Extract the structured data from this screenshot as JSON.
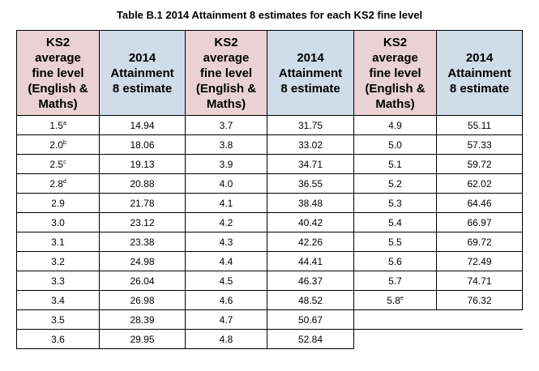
{
  "caption": "Table B.1 2014 Attainment 8 estimates for each KS2 fine level",
  "headers": {
    "ks2": [
      "KS2",
      "average",
      "fine level",
      "(English &",
      "Maths)"
    ],
    "att": [
      "2014",
      "Attainment",
      "8 estimate"
    ]
  },
  "rows": [
    [
      {
        "v": "1.5",
        "s": "a"
      },
      {
        "v": "14.94"
      },
      {
        "v": "3.7"
      },
      {
        "v": "31.75"
      },
      {
        "v": "4.9"
      },
      {
        "v": "55.11"
      }
    ],
    [
      {
        "v": "2.0",
        "s": "b"
      },
      {
        "v": "18.06"
      },
      {
        "v": "3.8"
      },
      {
        "v": "33.02"
      },
      {
        "v": "5.0"
      },
      {
        "v": "57.33"
      }
    ],
    [
      {
        "v": "2.5",
        "s": "c"
      },
      {
        "v": "19.13"
      },
      {
        "v": "3.9"
      },
      {
        "v": "34.71"
      },
      {
        "v": "5.1"
      },
      {
        "v": "59.72"
      }
    ],
    [
      {
        "v": "2.8",
        "s": "d"
      },
      {
        "v": "20.88"
      },
      {
        "v": "4.0"
      },
      {
        "v": "36.55"
      },
      {
        "v": "5.2"
      },
      {
        "v": "62.02"
      }
    ],
    [
      {
        "v": "2.9"
      },
      {
        "v": "21.78"
      },
      {
        "v": "4.1"
      },
      {
        "v": "38.48"
      },
      {
        "v": "5.3"
      },
      {
        "v": "64.46"
      }
    ],
    [
      {
        "v": "3.0"
      },
      {
        "v": "23.12"
      },
      {
        "v": "4.2"
      },
      {
        "v": "40.42"
      },
      {
        "v": "5.4"
      },
      {
        "v": "66.97"
      }
    ],
    [
      {
        "v": "3.1"
      },
      {
        "v": "23.38"
      },
      {
        "v": "4.3"
      },
      {
        "v": "42.26"
      },
      {
        "v": "5.5"
      },
      {
        "v": "69.72"
      }
    ],
    [
      {
        "v": "3.2"
      },
      {
        "v": "24.98"
      },
      {
        "v": "4.4"
      },
      {
        "v": "44.41"
      },
      {
        "v": "5.6"
      },
      {
        "v": "72.49"
      }
    ],
    [
      {
        "v": "3.3"
      },
      {
        "v": "26.04"
      },
      {
        "v": "4.5"
      },
      {
        "v": "46.37"
      },
      {
        "v": "5.7"
      },
      {
        "v": "74.71"
      }
    ],
    [
      {
        "v": "3.4"
      },
      {
        "v": "26.98"
      },
      {
        "v": "4.6"
      },
      {
        "v": "48.52"
      },
      {
        "v": "5.8",
        "s": "e"
      },
      {
        "v": "76.32"
      }
    ],
    [
      {
        "v": "3.5"
      },
      {
        "v": "28.39"
      },
      {
        "v": "4.7"
      },
      {
        "v": "50.67"
      }
    ],
    [
      {
        "v": "3.6"
      },
      {
        "v": "29.95"
      },
      {
        "v": "4.8"
      },
      {
        "v": "52.84"
      }
    ]
  ],
  "colors": {
    "ks2_header": "#ead1d3",
    "attainment_header": "#d0dde8"
  }
}
